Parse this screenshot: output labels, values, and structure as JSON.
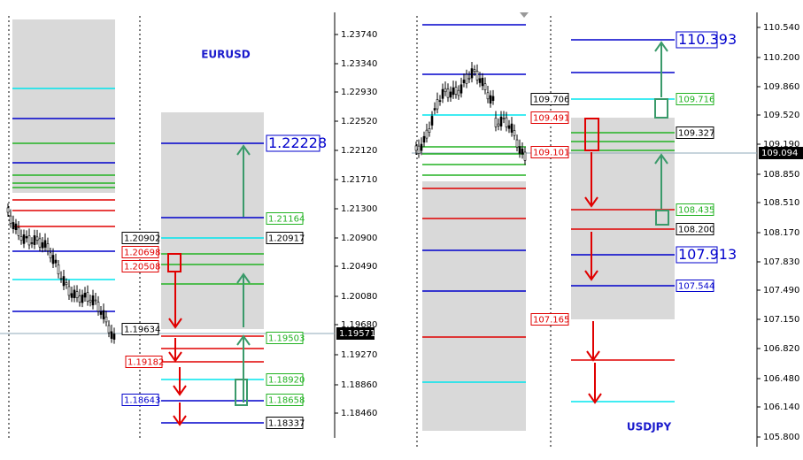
{
  "panels": [
    {
      "symbol": "EURUSD",
      "price_axis": [
        "1.23740",
        "1.23340",
        "1.22930",
        "1.22520",
        "1.22120",
        "1.21710",
        "1.21300",
        "1.20900",
        "1.20490",
        "1.20080",
        "1.19680",
        "1.19270",
        "1.18860",
        "1.18460"
      ],
      "current_price": "1.19571",
      "level_labels": [
        "1.22228",
        "1.21164",
        "1.20917",
        "1.20902",
        "1.20698",
        "1.20508",
        "1.19634",
        "1.19503",
        "1.19182",
        "1.18920",
        "1.18643",
        "1.18658",
        "1.18337"
      ]
    },
    {
      "symbol": "USDJPY",
      "price_axis": [
        "110.540",
        "110.200",
        "109.860",
        "109.520",
        "109.190",
        "108.850",
        "108.510",
        "108.170",
        "107.830",
        "107.490",
        "107.150",
        "106.820",
        "106.480",
        "106.140",
        "105.800"
      ],
      "current_price": "109.094",
      "level_labels": [
        "110.393",
        "109.706",
        "109.716",
        "109.491",
        "109.327",
        "109.101",
        "108.435",
        "108.200",
        "107.913",
        "107.544",
        "107.165"
      ]
    }
  ]
}
